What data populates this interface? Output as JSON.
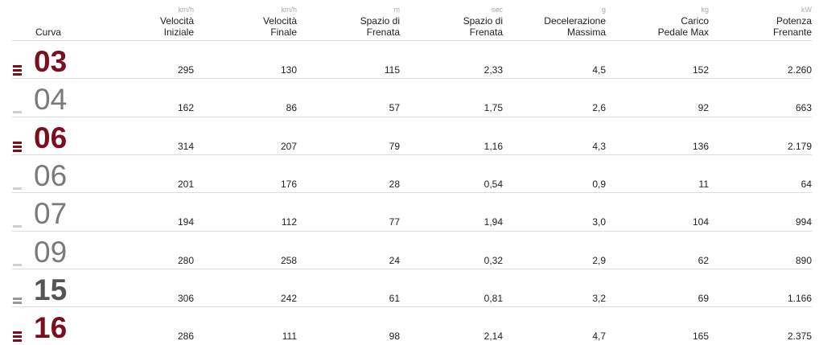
{
  "header": {
    "columns": [
      {
        "label": [
          "Curva"
        ]
      },
      {
        "unit": "km/h",
        "label": [
          "Velocità",
          "Iniziale"
        ]
      },
      {
        "unit": "km/h",
        "label": [
          "Velocità",
          "Finale"
        ]
      },
      {
        "unit": "m",
        "label": [
          "Spazio di",
          "Frenata"
        ]
      },
      {
        "unit": "sec",
        "label": [
          "Spazio di",
          "Frenata"
        ]
      },
      {
        "unit": "g",
        "label": [
          "Decelerazione",
          "Massima"
        ]
      },
      {
        "unit": "kg",
        "label": [
          "Carico",
          "Pedale Max"
        ]
      },
      {
        "unit": "kW",
        "label": [
          "Potenza",
          "Frenante"
        ]
      }
    ]
  },
  "rows": [
    {
      "curve": "03",
      "values": [
        "295",
        "130",
        "115",
        "2,33",
        "4,5",
        "152",
        "2.260"
      ]
    },
    {
      "curve": "04",
      "values": [
        "162",
        "86",
        "57",
        "1,75",
        "2,6",
        "92",
        "663"
      ]
    },
    {
      "curve": "06",
      "values": [
        "314",
        "207",
        "79",
        "1,16",
        "4,3",
        "136",
        "2.179"
      ]
    },
    {
      "curve": "06",
      "values": [
        "201",
        "176",
        "28",
        "0,54",
        "0,9",
        "11",
        "64"
      ]
    },
    {
      "curve": "07",
      "values": [
        "194",
        "112",
        "77",
        "1,94",
        "3,0",
        "104",
        "994"
      ]
    },
    {
      "curve": "09",
      "values": [
        "280",
        "258",
        "24",
        "0,32",
        "2,9",
        "62",
        "890"
      ]
    },
    {
      "curve": "15",
      "values": [
        "306",
        "242",
        "61",
        "0,81",
        "3,2",
        "69",
        "1.166"
      ]
    },
    {
      "curve": "16",
      "values": [
        "286",
        "111",
        "98",
        "2,14",
        "4,7",
        "165",
        "2.375"
      ]
    }
  ]
}
